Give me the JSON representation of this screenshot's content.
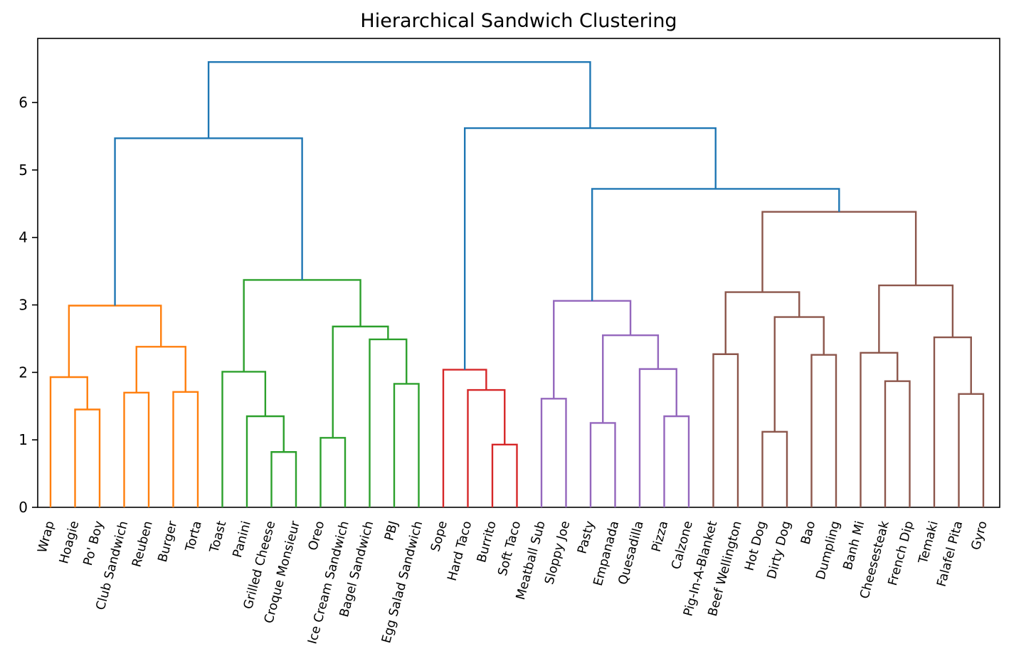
{
  "chart_data": {
    "type": "dendrogram",
    "title": "Hierarchical Sandwich Clustering",
    "xlabel": "",
    "ylabel": "",
    "ylim": [
      0,
      6.95
    ],
    "yticks": [
      0,
      1,
      2,
      3,
      4,
      5,
      6
    ],
    "leaves": [
      "Wrap",
      "Hoagie",
      "Po' Boy",
      "Club Sandwich",
      "Reuben",
      "Burger",
      "Torta",
      "Toast",
      "Panini",
      "Grilled Cheese",
      "Croque Monsieur",
      "Oreo",
      "Ice Cream Sandwich",
      "Bagel Sandwich",
      "PBJ",
      "Egg Salad Sandwich",
      "Sope",
      "Hard Taco",
      "Burrito",
      "Soft Taco",
      "Meatball Sub",
      "Sloppy Joe",
      "Pasty",
      "Empanada",
      "Quesadilla",
      "Pizza",
      "Calzone",
      "Pig-In-A-Blanket",
      "Beef Wellington",
      "Hot Dog",
      "Dirty Dog",
      "Bao",
      "Dumpling",
      "Banh Mi",
      "Cheesesteak",
      "French Dip",
      "Temaki",
      "Falafel Pita",
      "Gyro"
    ],
    "above_threshold_color": "#1f77b4",
    "clusters": [
      {
        "color": "#ff7f0e",
        "leaves": [
          "Wrap",
          "Hoagie",
          "Po' Boy",
          "Club Sandwich",
          "Reuben",
          "Burger",
          "Torta"
        ]
      },
      {
        "color": "#2ca02c",
        "leaves": [
          "Toast",
          "Panini",
          "Grilled Cheese",
          "Croque Monsieur",
          "Oreo",
          "Ice Cream Sandwich",
          "Bagel Sandwich",
          "PBJ"
        ]
      },
      {
        "color": "#d62728",
        "leaves": [
          "Egg Salad Sandwich",
          "Sope",
          "Hard Taco",
          "Burrito",
          "Soft Taco"
        ]
      },
      {
        "color": "#9467bd",
        "leaves": [
          "Meatball Sub",
          "Sloppy Joe",
          "Pasty",
          "Empanada",
          "Quesadilla",
          "Pizza",
          "Calzone"
        ]
      },
      {
        "color": "#8c564b",
        "leaves": [
          "Pig-In-A-Blanket",
          "Beef Wellington",
          "Hot Dog",
          "Dirty Dog",
          "Bao",
          "Dumpling",
          "Banh Mi",
          "Cheesesteak",
          "French Dip",
          "Temaki",
          "Falafel Pita",
          "Gyro"
        ]
      }
    ],
    "merges": [
      {
        "a": "L1",
        "b": "L2",
        "height": 1.45,
        "color": "#ff7f0e"
      },
      {
        "a": "L0",
        "b": "M0",
        "height": 1.93,
        "color": "#ff7f0e"
      },
      {
        "a": "L3",
        "b": "L4",
        "height": 1.7,
        "color": "#ff7f0e"
      },
      {
        "a": "L5",
        "b": "L6",
        "height": 1.71,
        "color": "#ff7f0e"
      },
      {
        "a": "M2",
        "b": "M3",
        "height": 2.38,
        "color": "#ff7f0e"
      },
      {
        "a": "M1",
        "b": "M4",
        "height": 2.99,
        "color": "#ff7f0e"
      },
      {
        "a": "L9",
        "b": "L10",
        "height": 0.82,
        "color": "#2ca02c"
      },
      {
        "a": "L8",
        "b": "M6",
        "height": 1.35,
        "color": "#2ca02c"
      },
      {
        "a": "L7",
        "b": "M7",
        "height": 2.01,
        "color": "#2ca02c"
      },
      {
        "a": "L11",
        "b": "L12",
        "height": 1.03,
        "color": "#2ca02c"
      },
      {
        "a": "L14",
        "b": "L15",
        "height": 1.83,
        "color": "#2ca02c"
      },
      {
        "a": "L13",
        "b": "M10",
        "height": 2.49,
        "color": "#2ca02c"
      },
      {
        "a": "M9",
        "b": "M11",
        "height": 2.68,
        "color": "#2ca02c"
      },
      {
        "a": "M8",
        "b": "M12",
        "height": 3.37,
        "color": "#2ca02c"
      },
      {
        "a": "M5",
        "b": "M13",
        "height": 5.47,
        "color": "#1f77b4"
      },
      {
        "a": "L18",
        "b": "L19",
        "height": 0.93,
        "color": "#d62728"
      },
      {
        "a": "L17",
        "b": "M15",
        "height": 1.74,
        "color": "#d62728"
      },
      {
        "a": "L16",
        "b": "M16",
        "height": 2.04,
        "color": "#d62728"
      },
      {
        "a": "L20",
        "b": "L21",
        "height": 1.61,
        "color": "#9467bd"
      },
      {
        "a": "L22",
        "b": "L23",
        "height": 1.25,
        "color": "#9467bd"
      },
      {
        "a": "L25",
        "b": "L26",
        "height": 1.35,
        "color": "#9467bd"
      },
      {
        "a": "L24",
        "b": "M20",
        "height": 2.05,
        "color": "#9467bd"
      },
      {
        "a": "M19",
        "b": "M21",
        "height": 2.55,
        "color": "#9467bd"
      },
      {
        "a": "M18",
        "b": "M22",
        "height": 3.06,
        "color": "#9467bd"
      },
      {
        "a": "L27",
        "b": "L28",
        "height": 2.27,
        "color": "#8c564b"
      },
      {
        "a": "L29",
        "b": "L30",
        "height": 1.12,
        "color": "#8c564b"
      },
      {
        "a": "L31",
        "b": "L32",
        "height": 2.26,
        "color": "#8c564b"
      },
      {
        "a": "M25",
        "b": "M26",
        "height": 2.82,
        "color": "#8c564b"
      },
      {
        "a": "M24",
        "b": "M27",
        "height": 3.19,
        "color": "#8c564b"
      },
      {
        "a": "L34",
        "b": "L35",
        "height": 1.87,
        "color": "#8c564b"
      },
      {
        "a": "L33",
        "b": "M29",
        "height": 2.29,
        "color": "#8c564b"
      },
      {
        "a": "L37",
        "b": "L38",
        "height": 1.68,
        "color": "#8c564b"
      },
      {
        "a": "L36",
        "b": "M31",
        "height": 2.52,
        "color": "#8c564b"
      },
      {
        "a": "M30",
        "b": "M32",
        "height": 3.29,
        "color": "#8c564b"
      },
      {
        "a": "M28",
        "b": "M33",
        "height": 4.38,
        "color": "#8c564b"
      },
      {
        "a": "M23",
        "b": "M34",
        "height": 4.72,
        "color": "#1f77b4"
      },
      {
        "a": "M17",
        "b": "M35",
        "height": 5.62,
        "color": "#1f77b4"
      },
      {
        "a": "M14",
        "b": "M36",
        "height": 6.6,
        "color": "#1f77b4"
      }
    ]
  }
}
